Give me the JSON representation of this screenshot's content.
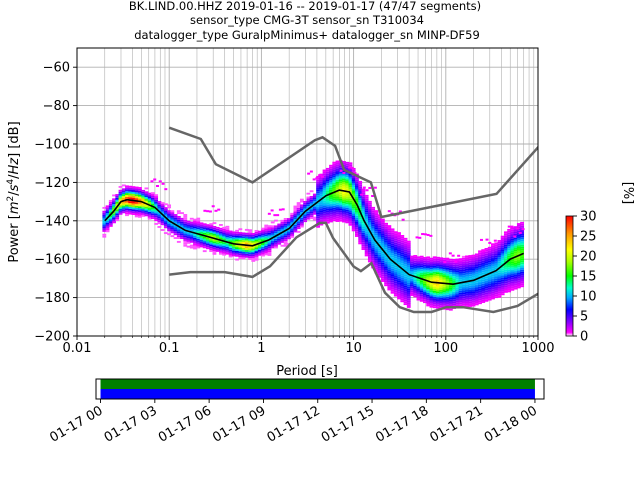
{
  "title": {
    "line1": "BK.LIND.00.HHZ   2019-01-16 -- 2019-01-17  (47/47 segments)",
    "line2": "sensor_type CMG-3T sensor_sn T310034",
    "line3": "datalogger_type GuralpMinimus+ datalogger_sn MINP-DF59"
  },
  "chart_data": [
    {
      "type": "heatmap",
      "subtype": "probabilistic-power-spectral-density",
      "xlabel": "Period [s]",
      "ylabel_plain": "Power [m²/s⁴/Hz] [dB]",
      "x_scale": "log",
      "xlim": [
        0.01,
        1000
      ],
      "ylim": [
        -200,
        -50
      ],
      "x_ticks": [
        0.01,
        0.1,
        1,
        10,
        100,
        1000
      ],
      "x_tick_labels": [
        "0.01",
        "0.1",
        "1",
        "10",
        "100",
        "1000"
      ],
      "y_ticks": [
        -200,
        -180,
        -160,
        -140,
        -120,
        -100,
        -80,
        -60
      ],
      "grid": true,
      "colorbar": {
        "label": "[%]",
        "min": 0,
        "max": 30,
        "ticks": [
          0,
          5,
          10,
          15,
          20,
          25,
          30
        ],
        "colormap": "pqlx"
      },
      "noise_models": [
        {
          "name": "NHNM",
          "color": "#666666",
          "points": [
            [
              0.1,
              -91.5
            ],
            [
              0.22,
              -97.4
            ],
            [
              0.32,
              -110.5
            ],
            [
              0.8,
              -120
            ],
            [
              3.8,
              -98
            ],
            [
              4.6,
              -96.5
            ],
            [
              6.3,
              -101
            ],
            [
              7.9,
              -113.5
            ],
            [
              15.4,
              -120
            ],
            [
              20,
              -138
            ],
            [
              354.8,
              -126
            ],
            [
              10000,
              -48
            ]
          ]
        },
        {
          "name": "NLNM",
          "color": "#666666",
          "points": [
            [
              0.1,
              -168
            ],
            [
              0.17,
              -166.7
            ],
            [
              0.4,
              -166.7
            ],
            [
              0.8,
              -169.2
            ],
            [
              1.24,
              -163.7
            ],
            [
              2.4,
              -148.6
            ],
            [
              4.3,
              -141.1
            ],
            [
              5,
              -141.1
            ],
            [
              6,
              -149
            ],
            [
              10,
              -163.8
            ],
            [
              12,
              -166.2
            ],
            [
              15.6,
              -162.1
            ],
            [
              21.9,
              -177.5
            ],
            [
              31.6,
              -185
            ],
            [
              45,
              -187.5
            ],
            [
              70,
              -187.5
            ],
            [
              101,
              -185
            ],
            [
              154,
              -185
            ],
            [
              328,
              -187.5
            ],
            [
              600,
              -184.4
            ],
            [
              1000,
              -178
            ]
          ]
        }
      ],
      "mode_line": {
        "color": "#000000",
        "points": [
          [
            0.02,
            -140
          ],
          [
            0.025,
            -135
          ],
          [
            0.03,
            -130
          ],
          [
            0.035,
            -129
          ],
          [
            0.05,
            -130
          ],
          [
            0.07,
            -133
          ],
          [
            0.1,
            -140
          ],
          [
            0.15,
            -145
          ],
          [
            0.3,
            -149
          ],
          [
            0.5,
            -152
          ],
          [
            0.8,
            -153
          ],
          [
            1.2,
            -150
          ],
          [
            2,
            -144
          ],
          [
            3,
            -135
          ],
          [
            5,
            -127
          ],
          [
            7,
            -124
          ],
          [
            9,
            -125
          ],
          [
            11,
            -132
          ],
          [
            13,
            -140
          ],
          [
            17,
            -150
          ],
          [
            25,
            -160
          ],
          [
            40,
            -168
          ],
          [
            70,
            -172
          ],
          [
            120,
            -173
          ],
          [
            200,
            -171
          ],
          [
            350,
            -166
          ],
          [
            500,
            -160
          ],
          [
            700,
            -157
          ]
        ]
      },
      "density_hotspots": [
        {
          "x": 0.04,
          "y": -128,
          "pct": 28
        },
        {
          "x": 0.3,
          "y": -148,
          "pct": 14
        },
        {
          "x": 0.7,
          "y": -153,
          "pct": 20
        },
        {
          "x": 8,
          "y": -124,
          "pct": 16
        },
        {
          "x": 80,
          "y": -172,
          "pct": 18
        },
        {
          "x": 600,
          "y": -159,
          "pct": 12
        }
      ]
    },
    {
      "type": "bar",
      "subtype": "data-coverage-timeline",
      "xlim": [
        "2019-01-16T23:45",
        "2019-01-18T00:30"
      ],
      "x_ticks": [
        "2019-01-17T00:00",
        "2019-01-17T03:00",
        "2019-01-17T06:00",
        "2019-01-17T09:00",
        "2019-01-17T12:00",
        "2019-01-17T15:00",
        "2019-01-17T18:00",
        "2019-01-17T21:00",
        "2019-01-18T00:00"
      ],
      "x_tick_labels": [
        "01-17 00",
        "01-17 03",
        "01-17 06",
        "01-17 09",
        "01-17 12",
        "01-17 15",
        "01-17 18",
        "01-17 21",
        "01-18 00"
      ],
      "bars": [
        {
          "start": "2019-01-17T00:00",
          "end": "2019-01-18T00:00",
          "color": "#008000"
        },
        {
          "start": "2019-01-17T00:00",
          "end": "2019-01-18T00:00",
          "color": "#0000ff"
        }
      ]
    }
  ]
}
